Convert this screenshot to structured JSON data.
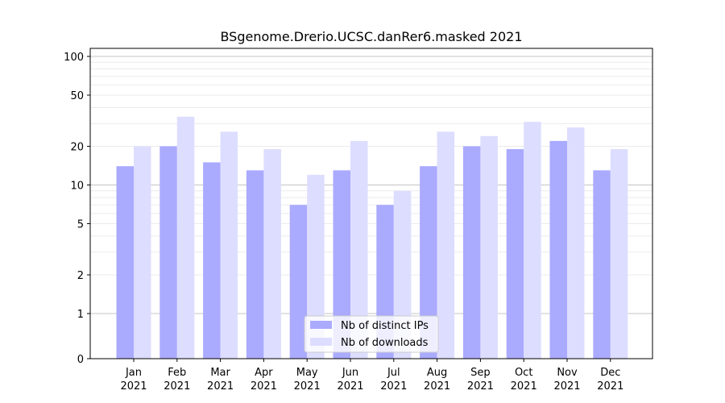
{
  "chart_data": {
    "type": "bar",
    "title": "BSgenome.Drerio.UCSC.danRer6.masked 2021",
    "xlabel": "",
    "ylabel": "",
    "categories": [
      [
        "Jan",
        "2021"
      ],
      [
        "Feb",
        "2021"
      ],
      [
        "Mar",
        "2021"
      ],
      [
        "Apr",
        "2021"
      ],
      [
        "May",
        "2021"
      ],
      [
        "Jun",
        "2021"
      ],
      [
        "Jul",
        "2021"
      ],
      [
        "Aug",
        "2021"
      ],
      [
        "Sep",
        "2021"
      ],
      [
        "Oct",
        "2021"
      ],
      [
        "Nov",
        "2021"
      ],
      [
        "Dec",
        "2021"
      ]
    ],
    "series": [
      {
        "name": "Nb of distinct IPs",
        "color": "#aaaaff",
        "values": [
          14,
          20,
          15,
          13,
          7,
          13,
          7,
          14,
          20,
          19,
          22,
          13
        ]
      },
      {
        "name": "Nb of downloads",
        "color": "#ddddff",
        "values": [
          20,
          34,
          26,
          19,
          12,
          22,
          9,
          26,
          24,
          31,
          28,
          19
        ]
      }
    ],
    "y_scale": "symlog",
    "yticks": [
      0,
      1,
      2,
      5,
      10,
      20,
      50,
      100
    ],
    "ylim": [
      0,
      120
    ],
    "grid": true,
    "legend_position": "bottom-center"
  }
}
